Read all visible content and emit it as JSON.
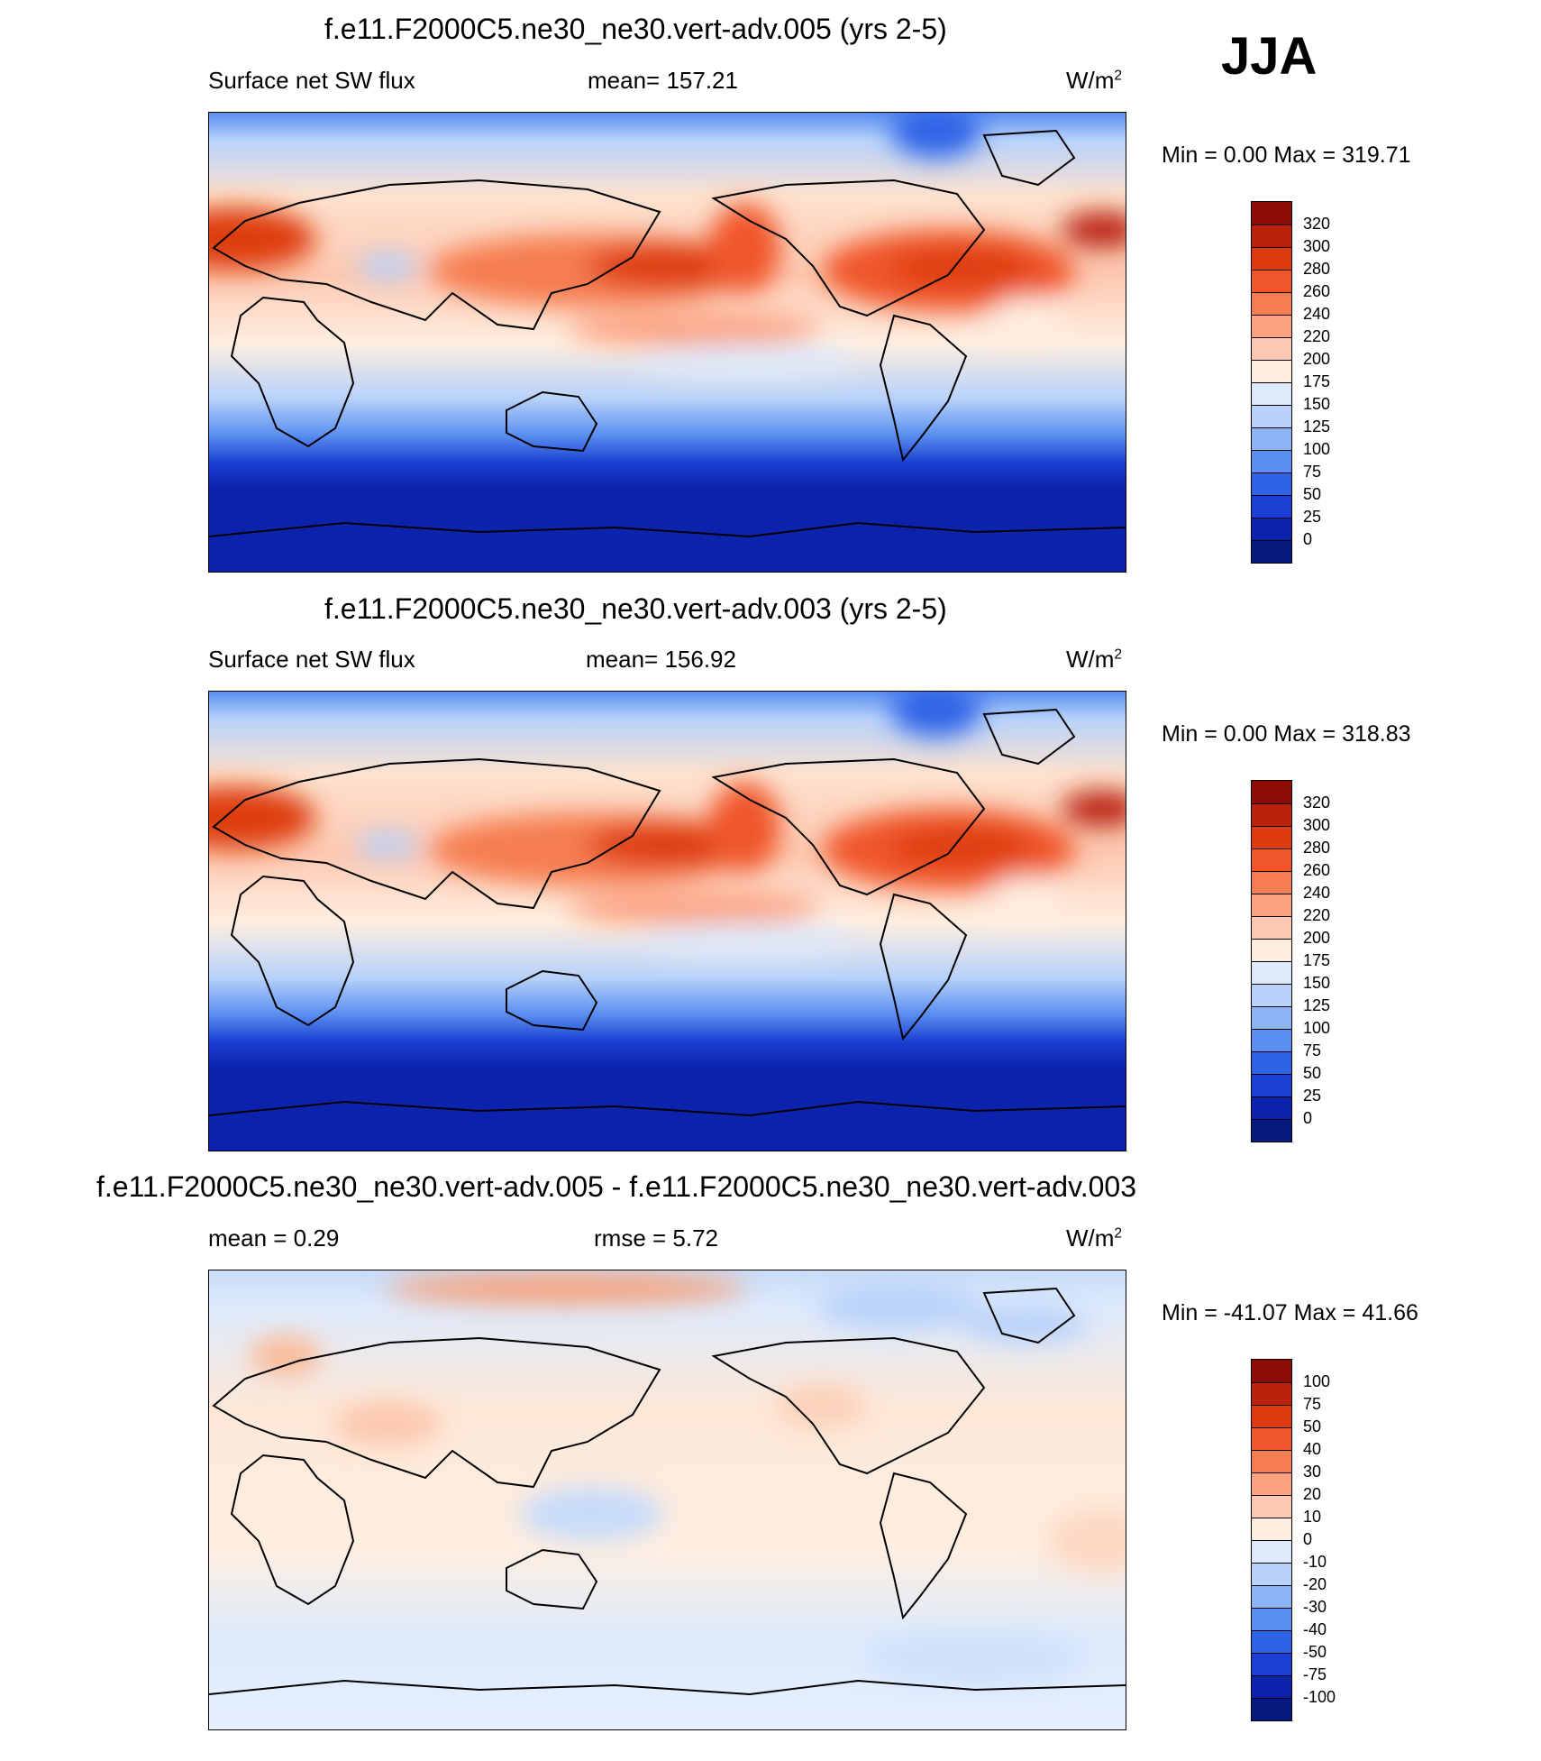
{
  "figure": {
    "season": "JJA",
    "units_base": "W/m",
    "units_exp": "2"
  },
  "panels": [
    {
      "title": "f.e11.F2000C5.ne30_ne30.vert-adv.005 (yrs 2-5)",
      "left_label": "Surface net SW flux",
      "center_label": "mean= 157.21",
      "minmax": "Min =    0.00 Max = 319.71"
    },
    {
      "title": "f.e11.F2000C5.ne30_ne30.vert-adv.003 (yrs 2-5)",
      "left_label": "Surface net SW flux",
      "center_label": "mean= 156.92",
      "minmax": "Min =    0.00 Max = 318.83"
    },
    {
      "title": "f.e11.F2000C5.ne30_ne30.vert-adv.005 - f.e11.F2000C5.ne30_ne30.vert-adv.003",
      "left_label": "mean =   0.29",
      "center_label": "rmse =   5.72",
      "minmax": "Min = -41.07 Max =  41.66"
    }
  ],
  "chart_data": [
    {
      "type": "heatmap",
      "title": "f.e11.F2000C5.ne30_ne30.vert-adv.005 (yrs 2-5)",
      "variable": "Surface net SW flux",
      "mean": 157.21,
      "min": 0.0,
      "max": 319.71,
      "colorbar_levels": [
        "320",
        "300",
        "280",
        "260",
        "240",
        "220",
        "200",
        "175",
        "150",
        "125",
        "100",
        "75",
        "50",
        "25",
        "0"
      ],
      "colorbar_colors": [
        "#8c0c05",
        "#b9230a",
        "#de3c10",
        "#f0562a",
        "#f57d50",
        "#fba381",
        "#fdc8b0",
        "#feeee0",
        "#ddeafc",
        "#b8d2fa",
        "#8db4f5",
        "#5a8ff0",
        "#2f63e6",
        "#1a3fd2",
        "#0c22ac",
        "#051a7c"
      ]
    },
    {
      "type": "heatmap",
      "title": "f.e11.F2000C5.ne30_ne30.vert-adv.003 (yrs 2-5)",
      "variable": "Surface net SW flux",
      "mean": 156.92,
      "min": 0.0,
      "max": 318.83,
      "colorbar_levels": [
        "320",
        "300",
        "280",
        "260",
        "240",
        "220",
        "200",
        "175",
        "150",
        "125",
        "100",
        "75",
        "50",
        "25",
        "0"
      ],
      "colorbar_colors": [
        "#8c0c05",
        "#b9230a",
        "#de3c10",
        "#f0562a",
        "#f57d50",
        "#fba381",
        "#fdc8b0",
        "#feeee0",
        "#ddeafc",
        "#b8d2fa",
        "#8db4f5",
        "#5a8ff0",
        "#2f63e6",
        "#1a3fd2",
        "#0c22ac",
        "#051a7c"
      ]
    },
    {
      "type": "heatmap",
      "title": "f.e11.F2000C5.ne30_ne30.vert-adv.005 - f.e11.F2000C5.ne30_ne30.vert-adv.003",
      "mean": 0.29,
      "rmse": 5.72,
      "min": -41.07,
      "max": 41.66,
      "colorbar_levels": [
        "100",
        "75",
        "50",
        "40",
        "30",
        "20",
        "10",
        "0",
        "-10",
        "-20",
        "-30",
        "-40",
        "-50",
        "-75",
        "-100"
      ],
      "colorbar_colors": [
        "#8c0c05",
        "#b9230a",
        "#de3c10",
        "#f0562a",
        "#f57d50",
        "#fba381",
        "#fdc8b0",
        "#feeee0",
        "#ddeafc",
        "#b8d2fa",
        "#8db4f5",
        "#5a8ff0",
        "#2f63e6",
        "#1a3fd2",
        "#0c22ac",
        "#051a7c"
      ]
    }
  ]
}
